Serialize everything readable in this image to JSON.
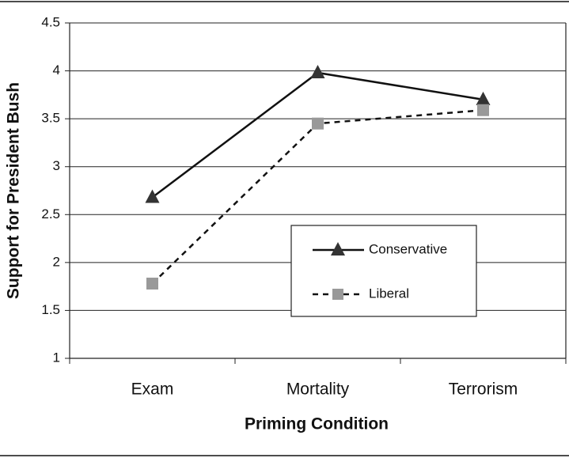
{
  "chart_data": {
    "type": "line",
    "x_label": "Priming Condition",
    "y_label": "Support for President Bush",
    "categories": [
      "Exam",
      "Mortality",
      "Terrorism"
    ],
    "series": [
      {
        "name": "Conservative",
        "color": "#333333",
        "line_color": "#111111",
        "dash": false,
        "marker": "triangle",
        "values": [
          2.68,
          3.98,
          3.7
        ]
      },
      {
        "name": "Liberal",
        "color": "#999999",
        "line_color": "#111111",
        "dash": true,
        "marker": "square",
        "values": [
          1.78,
          3.45,
          3.59
        ]
      }
    ],
    "ylim": [
      1,
      4.5
    ],
    "yticks": [
      1,
      1.5,
      2,
      2.5,
      3,
      3.5,
      4,
      4.5
    ],
    "grid": true
  }
}
